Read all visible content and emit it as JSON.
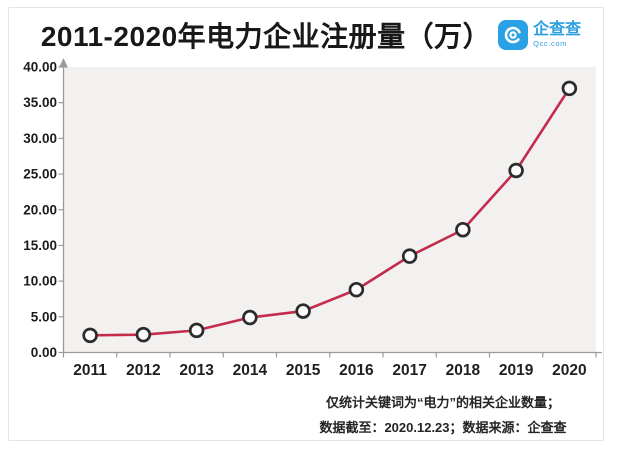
{
  "title": "2011-2020年电力企业注册量（万）",
  "logo": {
    "icon": "qcc-swirl-icon",
    "name": "企查查",
    "domain": "Qcc.com"
  },
  "chart_data": {
    "type": "line",
    "title": "2011-2020年电力企业注册量（万）",
    "categories": [
      "2011",
      "2012",
      "2013",
      "2014",
      "2015",
      "2016",
      "2017",
      "2018",
      "2019",
      "2020"
    ],
    "values": [
      2.4,
      2.5,
      3.1,
      4.9,
      5.8,
      8.8,
      13.5,
      17.2,
      25.5,
      37.0
    ],
    "series_name": "电力企业注册量（万）",
    "xlabel": "",
    "ylabel": "",
    "ylim": [
      0,
      40
    ],
    "ytick_step": 5,
    "ytick_labels": [
      "0.00",
      "5.00",
      "10.00",
      "15.00",
      "20.00",
      "25.00",
      "30.00",
      "35.00",
      "40.00"
    ],
    "grid": false,
    "legend_position": "none",
    "line_color": "#c42b4d",
    "marker": "open-circle",
    "marker_stroke": "#2c2c2c",
    "marker_fill": "#fcfcfc",
    "plot_bg": "#f2f1ef"
  },
  "colors": {
    "axis_gray": "#9b9b9b",
    "brand_blue": "#2d9fe0",
    "accent_red": "#c42b4d",
    "text_dark": "#1b1b1b"
  },
  "footer": {
    "line1": "仅统计关键词为“电力”的相关企业数量；",
    "line2": "数据截至：2020.12.23；数据来源：企查查"
  }
}
